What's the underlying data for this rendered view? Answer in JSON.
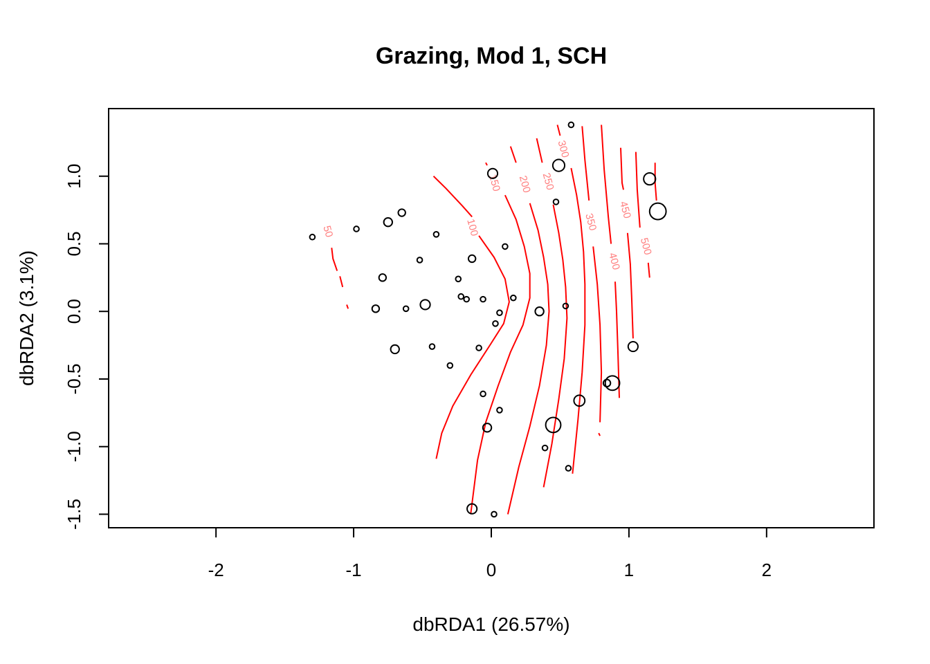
{
  "chart_data": {
    "type": "scatter",
    "title": "Grazing, Mod 1, SCH",
    "xlabel": "dbRDA1 (26.57%)",
    "ylabel": "dbRDA2 (3.1%)",
    "xlim": [
      -2.78,
      2.78
    ],
    "ylim": [
      -1.6,
      1.5
    ],
    "xticks": [
      -2,
      -1,
      0,
      1,
      2
    ],
    "xtick_labels": [
      "-2",
      "-1",
      "0",
      "1",
      "2"
    ],
    "yticks": [
      -1.5,
      -1.0,
      -0.5,
      0.0,
      0.5,
      1.0
    ],
    "ytick_labels": [
      "-1.5",
      "-1.0",
      "-0.5",
      "0.0",
      "0.5",
      "1.0"
    ],
    "grid": false,
    "contour_color": "#ff0000",
    "contour_label_color": "#ff8080",
    "point_color": "#000000",
    "points": [
      {
        "x": 0.58,
        "y": 1.38,
        "size": 1
      },
      {
        "x": 0.01,
        "y": 1.02,
        "size": 4
      },
      {
        "x": 0.49,
        "y": 1.08,
        "size": 6
      },
      {
        "x": 1.15,
        "y": 0.98,
        "size": 6
      },
      {
        "x": 1.21,
        "y": 0.74,
        "size": 12
      },
      {
        "x": 0.47,
        "y": 0.81,
        "size": 1
      },
      {
        "x": -0.65,
        "y": 0.73,
        "size": 2
      },
      {
        "x": -0.75,
        "y": 0.66,
        "size": 3
      },
      {
        "x": -0.98,
        "y": 0.61,
        "size": 1
      },
      {
        "x": -1.3,
        "y": 0.55,
        "size": 1
      },
      {
        "x": -0.4,
        "y": 0.57,
        "size": 1
      },
      {
        "x": 0.1,
        "y": 0.48,
        "size": 1
      },
      {
        "x": -0.52,
        "y": 0.38,
        "size": 1
      },
      {
        "x": -0.14,
        "y": 0.39,
        "size": 2
      },
      {
        "x": -0.79,
        "y": 0.25,
        "size": 2
      },
      {
        "x": -0.24,
        "y": 0.24,
        "size": 1
      },
      {
        "x": -0.22,
        "y": 0.11,
        "size": 1
      },
      {
        "x": -0.18,
        "y": 0.09,
        "size": 1
      },
      {
        "x": -0.06,
        "y": 0.09,
        "size": 1
      },
      {
        "x": 0.16,
        "y": 0.1,
        "size": 1
      },
      {
        "x": -0.48,
        "y": 0.05,
        "size": 4
      },
      {
        "x": -0.84,
        "y": 0.02,
        "size": 2
      },
      {
        "x": -0.62,
        "y": 0.02,
        "size": 1
      },
      {
        "x": 0.06,
        "y": -0.01,
        "size": 1
      },
      {
        "x": 0.35,
        "y": -0.0,
        "size": 3
      },
      {
        "x": 0.54,
        "y": 0.04,
        "size": 1
      },
      {
        "x": 0.03,
        "y": -0.09,
        "size": 1
      },
      {
        "x": -0.7,
        "y": -0.28,
        "size": 3
      },
      {
        "x": -0.43,
        "y": -0.26,
        "size": 1
      },
      {
        "x": -0.09,
        "y": -0.27,
        "size": 1
      },
      {
        "x": 1.03,
        "y": -0.26,
        "size": 4
      },
      {
        "x": -0.3,
        "y": -0.4,
        "size": 1
      },
      {
        "x": 0.88,
        "y": -0.53,
        "size": 9
      },
      {
        "x": 0.84,
        "y": -0.53,
        "size": 2
      },
      {
        "x": 0.64,
        "y": -0.66,
        "size": 5
      },
      {
        "x": -0.06,
        "y": -0.61,
        "size": 1
      },
      {
        "x": 0.06,
        "y": -0.73,
        "size": 1
      },
      {
        "x": 0.45,
        "y": -0.84,
        "size": 10
      },
      {
        "x": -0.03,
        "y": -0.86,
        "size": 3
      },
      {
        "x": 0.39,
        "y": -1.01,
        "size": 1
      },
      {
        "x": 0.56,
        "y": -1.16,
        "size": 1
      },
      {
        "x": -0.14,
        "y": -1.46,
        "size": 4
      },
      {
        "x": 0.02,
        "y": -1.5,
        "size": 1
      }
    ],
    "contours": [
      {
        "label": "50",
        "label_at": [
          -1.19,
          0.59
        ],
        "segments": [
          [
            [
              -1.16,
              0.47
            ],
            [
              -1.15,
              0.39
            ],
            [
              -1.12,
              0.3
            ]
          ],
          [
            [
              -1.1,
              0.26
            ],
            [
              -1.08,
              0.18
            ]
          ],
          [
            [
              -1.05,
              0.05
            ],
            [
              -1.04,
              0.02
            ]
          ]
        ]
      },
      {
        "label": "100",
        "label_at": [
          -0.14,
          0.62
        ],
        "segments": [
          [
            [
              -0.42,
              1.0
            ],
            [
              -0.33,
              0.91
            ],
            [
              -0.21,
              0.78
            ],
            [
              -0.14,
              0.7
            ]
          ],
          [
            [
              -0.09,
              0.56
            ],
            [
              0.02,
              0.4
            ],
            [
              0.1,
              0.24
            ],
            [
              0.13,
              0.07
            ],
            [
              0.09,
              -0.09
            ],
            [
              -0.01,
              -0.25
            ],
            [
              -0.15,
              -0.47
            ],
            [
              -0.28,
              -0.7
            ],
            [
              -0.36,
              -0.9
            ],
            [
              -0.4,
              -1.09
            ]
          ]
        ]
      },
      {
        "label": "150",
        "label_at": [
          0.02,
          0.95
        ],
        "segments": [
          [
            [
              -0.04,
              1.1
            ],
            [
              -0.03,
              1.08
            ]
          ],
          [
            [
              0.1,
              0.86
            ],
            [
              0.18,
              0.68
            ],
            [
              0.24,
              0.48
            ],
            [
              0.28,
              0.28
            ],
            [
              0.28,
              0.1
            ],
            [
              0.23,
              -0.1
            ],
            [
              0.14,
              -0.3
            ],
            [
              0.05,
              -0.55
            ],
            [
              -0.04,
              -0.82
            ],
            [
              -0.1,
              -1.1
            ],
            [
              -0.15,
              -1.5
            ]
          ]
        ]
      },
      {
        "label": "200",
        "label_at": [
          0.24,
          0.94
        ],
        "segments": [
          [
            [
              0.14,
              1.22
            ],
            [
              0.18,
              1.1
            ]
          ],
          [
            [
              0.28,
              0.8
            ],
            [
              0.34,
              0.6
            ],
            [
              0.38,
              0.4
            ],
            [
              0.41,
              0.2
            ],
            [
              0.42,
              0.0
            ],
            [
              0.4,
              -0.25
            ],
            [
              0.35,
              -0.55
            ],
            [
              0.28,
              -0.85
            ],
            [
              0.2,
              -1.15
            ],
            [
              0.12,
              -1.5
            ]
          ]
        ]
      },
      {
        "label": "250",
        "label_at": [
          0.41,
          0.96
        ],
        "segments": [
          [
            [
              0.33,
              1.28
            ],
            [
              0.37,
              1.1
            ]
          ],
          [
            [
              0.45,
              0.79
            ],
            [
              0.49,
              0.58
            ],
            [
              0.52,
              0.38
            ],
            [
              0.54,
              0.18
            ],
            [
              0.55,
              -0.05
            ],
            [
              0.53,
              -0.35
            ],
            [
              0.49,
              -0.65
            ],
            [
              0.44,
              -0.98
            ],
            [
              0.38,
              -1.3
            ]
          ]
        ]
      },
      {
        "label": "300",
        "label_at": [
          0.52,
          1.2
        ],
        "segments": [
          [
            [
              0.48,
              1.38
            ],
            [
              0.5,
              1.3
            ]
          ],
          [
            [
              0.58,
              1.06
            ],
            [
              0.62,
              0.86
            ],
            [
              0.65,
              0.66
            ],
            [
              0.67,
              0.44
            ],
            [
              0.68,
              0.2
            ],
            [
              0.68,
              -0.1
            ],
            [
              0.66,
              -0.45
            ],
            [
              0.63,
              -0.8
            ],
            [
              0.59,
              -1.2
            ]
          ]
        ]
      },
      {
        "label": "350",
        "label_at": [
          0.72,
          0.66
        ],
        "segments": [
          [
            [
              0.66,
              1.37
            ],
            [
              0.68,
              1.12
            ],
            [
              0.71,
              0.82
            ]
          ],
          [
            [
              0.74,
              0.48
            ],
            [
              0.77,
              0.2
            ],
            [
              0.79,
              -0.1
            ],
            [
              0.8,
              -0.45
            ],
            [
              0.79,
              -0.82
            ]
          ],
          [
            [
              0.79,
              -0.92
            ],
            [
              0.78,
              -0.9
            ]
          ]
        ]
      },
      {
        "label": "400",
        "label_at": [
          0.89,
          0.37
        ],
        "segments": [
          [
            [
              0.8,
              1.38
            ],
            [
              0.82,
              1.05
            ],
            [
              0.85,
              0.7
            ],
            [
              0.87,
              0.5
            ]
          ],
          [
            [
              0.9,
              0.22
            ],
            [
              0.91,
              0.0
            ],
            [
              0.92,
              -0.3
            ],
            [
              0.93,
              -0.64
            ]
          ]
        ]
      },
      {
        "label": "450",
        "label_at": [
          0.97,
          0.75
        ],
        "segments": [
          [
            [
              0.94,
              1.21
            ],
            [
              0.95,
              0.95
            ],
            [
              0.96,
              0.9
            ]
          ],
          [
            [
              0.99,
              0.58
            ],
            [
              1.01,
              0.35
            ],
            [
              1.02,
              0.1
            ],
            [
              1.03,
              -0.2
            ]
          ]
        ]
      },
      {
        "label": "500",
        "label_at": [
          1.12,
          0.48
        ],
        "segments": [
          [
            [
              1.05,
              1.18
            ],
            [
              1.06,
              0.9
            ],
            [
              1.08,
              0.62
            ]
          ],
          [
            [
              1.14,
              0.36
            ],
            [
              1.15,
              0.25
            ]
          ]
        ]
      },
      {
        "label": "",
        "label_at": null,
        "segments": [
          [
            [
              1.19,
              1.1
            ],
            [
              1.19,
              0.95
            ],
            [
              1.2,
              0.82
            ]
          ]
        ]
      }
    ]
  }
}
